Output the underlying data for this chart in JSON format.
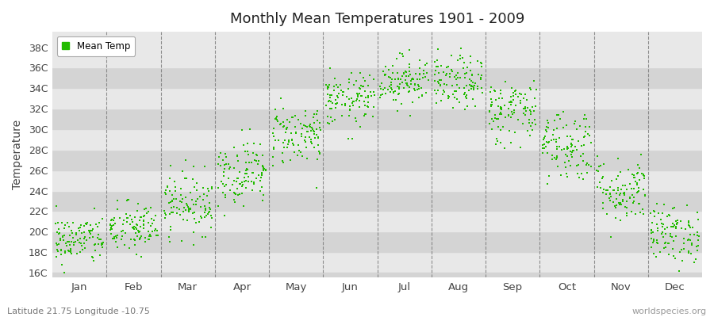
{
  "title": "Monthly Mean Temperatures 1901 - 2009",
  "ylabel": "Temperature",
  "subtitle": "Latitude 21.75 Longitude -10.75",
  "watermark": "worldspecies.org",
  "dot_color": "#22bb00",
  "band_color_light": "#e8e8e8",
  "band_color_dark": "#d4d4d4",
  "ylim": [
    15.5,
    39.5
  ],
  "yticks": [
    16,
    18,
    20,
    22,
    24,
    26,
    28,
    30,
    32,
    34,
    36,
    38
  ],
  "months": [
    "Jan",
    "Feb",
    "Mar",
    "Apr",
    "May",
    "Jun",
    "Jul",
    "Aug",
    "Sep",
    "Oct",
    "Nov",
    "Dec"
  ],
  "monthly_means": [
    19.2,
    20.3,
    22.8,
    25.8,
    29.5,
    32.8,
    34.8,
    34.5,
    31.8,
    28.5,
    24.0,
    19.8
  ],
  "monthly_stds": [
    1.2,
    1.3,
    1.5,
    1.6,
    1.5,
    1.3,
    1.2,
    1.3,
    1.6,
    1.8,
    1.6,
    1.4
  ],
  "n_years": 109,
  "seed": 42
}
